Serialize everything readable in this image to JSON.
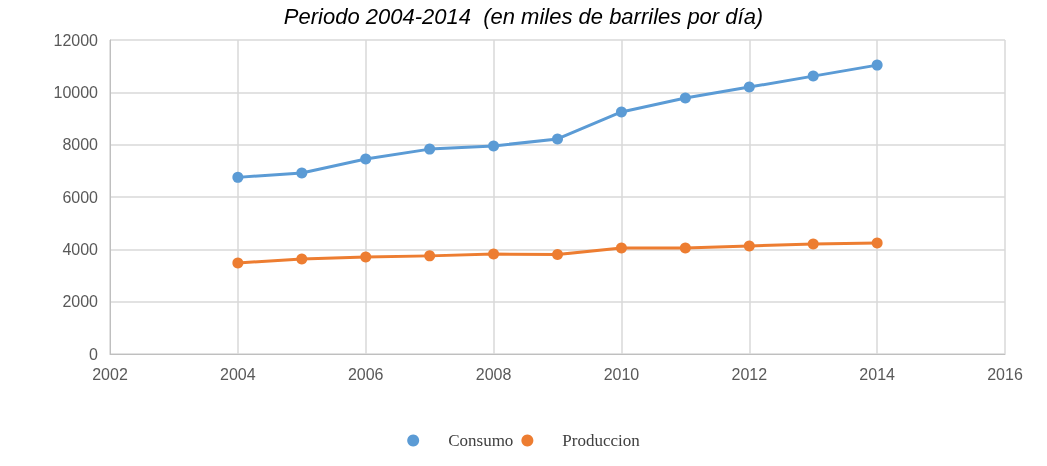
{
  "chart_data": {
    "type": "line",
    "title": "Periodo 2004-2014  (en miles de barriles por día)",
    "x": [
      2004,
      2005,
      2006,
      2007,
      2008,
      2009,
      2010,
      2011,
      2012,
      2013,
      2014
    ],
    "series": [
      {
        "name": "Consumo",
        "color": "#5b9bd5",
        "values": [
          6750,
          6920,
          7450,
          7830,
          7950,
          8220,
          9250,
          9780,
          10200,
          10620,
          11040
        ]
      },
      {
        "name": "Produccion",
        "color": "#ed7d31",
        "values": [
          3480,
          3630,
          3710,
          3750,
          3820,
          3800,
          4050,
          4050,
          4130,
          4200,
          4240
        ]
      }
    ],
    "xlim": [
      2002,
      2016
    ],
    "xticks": [
      2002,
      2004,
      2006,
      2008,
      2010,
      2012,
      2014,
      2016
    ],
    "ylim": [
      0,
      12000
    ],
    "yticks": [
      0,
      2000,
      4000,
      6000,
      8000,
      10000,
      12000
    ],
    "grid": true,
    "legend": "bottom",
    "marker": "circle",
    "line_style": "solid"
  }
}
